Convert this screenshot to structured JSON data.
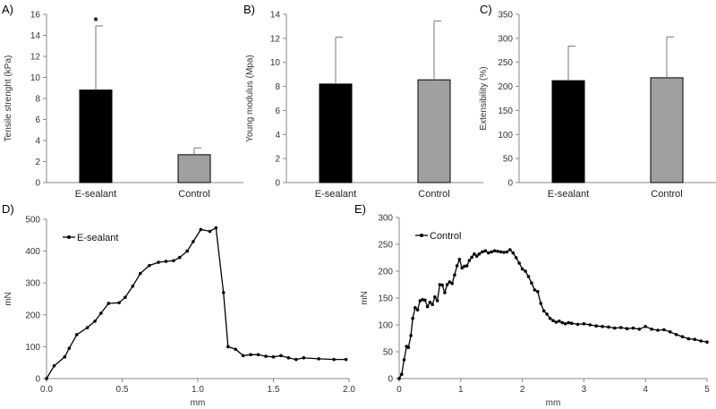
{
  "chart_data": [
    {
      "panel_label": "A)",
      "type": "bar",
      "categories": [
        "E-sealant",
        "Control"
      ],
      "values": [
        8.8,
        2.65
      ],
      "errors": [
        6.1,
        0.65
      ],
      "colors": [
        "#000000",
        "#a0a0a0"
      ],
      "significance": [
        "*",
        ""
      ],
      "ylabel": "Tensile strenght (kPa)",
      "ylim": [
        0,
        16
      ],
      "yticks": [
        0,
        2,
        4,
        6,
        8,
        10,
        12,
        14,
        16
      ],
      "grid": false
    },
    {
      "panel_label": "B)",
      "type": "bar",
      "categories": [
        "E-sealant",
        "Control"
      ],
      "values": [
        8.2,
        8.55
      ],
      "errors": [
        3.9,
        4.9
      ],
      "colors": [
        "#000000",
        "#a0a0a0"
      ],
      "ylabel": "Young modulus (Mpa)",
      "ylim": [
        0,
        14
      ],
      "yticks": [
        0,
        2,
        4,
        6,
        8,
        10,
        12,
        14
      ],
      "grid": false
    },
    {
      "panel_label": "C)",
      "type": "bar",
      "categories": [
        "E-sealant",
        "Control"
      ],
      "values": [
        212,
        218
      ],
      "errors": [
        72,
        85
      ],
      "colors": [
        "#000000",
        "#a0a0a0"
      ],
      "ylabel": "Extensibility (%)",
      "ylim": [
        0,
        350
      ],
      "yticks": [
        0,
        50,
        100,
        150,
        200,
        250,
        300,
        350
      ],
      "grid": false
    },
    {
      "panel_label": "D)",
      "type": "line",
      "xlabel": "mm",
      "ylabel": "mN",
      "xlim": [
        0,
        2
      ],
      "ylim": [
        0,
        500
      ],
      "xticks": [
        "0.0",
        "0.5",
        "1.0",
        "1.5",
        "2.0"
      ],
      "yticks": [
        0,
        100,
        200,
        300,
        400,
        500
      ],
      "legend": "top-left",
      "grid": false,
      "series": [
        {
          "name": "E-sealant",
          "x": [
            0,
            0.05,
            0.12,
            0.15,
            0.2,
            0.27,
            0.32,
            0.36,
            0.41,
            0.48,
            0.52,
            0.57,
            0.62,
            0.68,
            0.74,
            0.79,
            0.84,
            0.88,
            0.93,
            0.97,
            1.02,
            1.08,
            1.12,
            1.17,
            1.2,
            1.25,
            1.3,
            1.35,
            1.4,
            1.45,
            1.5,
            1.55,
            1.6,
            1.65,
            1.7,
            1.8,
            1.9,
            1.98
          ],
          "y": [
            0,
            40,
            68,
            95,
            138,
            160,
            180,
            205,
            236,
            238,
            255,
            290,
            330,
            355,
            365,
            368,
            370,
            380,
            400,
            430,
            468,
            462,
            473,
            270,
            100,
            92,
            72,
            75,
            75,
            70,
            68,
            72,
            65,
            60,
            65,
            62,
            60,
            60
          ]
        }
      ]
    },
    {
      "panel_label": "E)",
      "type": "line",
      "xlabel": "mm",
      "ylabel": "mN",
      "xlim": [
        0,
        5
      ],
      "ylim": [
        0,
        300
      ],
      "xticks": [
        "0",
        "1",
        "2",
        "3",
        "4",
        "5"
      ],
      "yticks": [
        0,
        50,
        100,
        150,
        200,
        250,
        300
      ],
      "legend": "top-left",
      "grid": false,
      "series": [
        {
          "name": "Control",
          "x": [
            0,
            0.04,
            0.08,
            0.12,
            0.15,
            0.19,
            0.22,
            0.26,
            0.3,
            0.34,
            0.38,
            0.42,
            0.46,
            0.5,
            0.54,
            0.58,
            0.62,
            0.66,
            0.7,
            0.74,
            0.78,
            0.82,
            0.86,
            0.9,
            0.94,
            0.98,
            1.02,
            1.06,
            1.1,
            1.14,
            1.18,
            1.22,
            1.26,
            1.3,
            1.35,
            1.4,
            1.45,
            1.5,
            1.55,
            1.6,
            1.65,
            1.7,
            1.75,
            1.8,
            1.85,
            1.9,
            1.95,
            2.0,
            2.05,
            2.1,
            2.15,
            2.2,
            2.25,
            2.3,
            2.35,
            2.4,
            2.45,
            2.5,
            2.55,
            2.6,
            2.65,
            2.7,
            2.75,
            2.8,
            2.9,
            3.0,
            3.1,
            3.2,
            3.3,
            3.4,
            3.5,
            3.6,
            3.7,
            3.8,
            3.9,
            4.0,
            4.1,
            4.2,
            4.3,
            4.4,
            4.5,
            4.6,
            4.7,
            4.8,
            4.9,
            5.0
          ],
          "y": [
            0,
            8,
            35,
            60,
            58,
            80,
            112,
            132,
            128,
            145,
            147,
            146,
            134,
            142,
            138,
            152,
            145,
            175,
            174,
            160,
            175,
            180,
            177,
            193,
            210,
            222,
            206,
            209,
            210,
            220,
            226,
            232,
            228,
            232,
            236,
            238,
            234,
            236,
            238,
            237,
            236,
            235,
            236,
            240,
            234,
            225,
            215,
            204,
            200,
            190,
            178,
            165,
            162,
            140,
            126,
            120,
            112,
            108,
            105,
            107,
            104,
            102,
            104,
            103,
            101,
            102,
            100,
            98,
            97,
            96,
            94,
            95,
            93,
            94,
            92,
            97,
            92,
            90,
            91,
            87,
            82,
            78,
            74,
            73,
            70,
            68
          ]
        }
      ]
    }
  ]
}
